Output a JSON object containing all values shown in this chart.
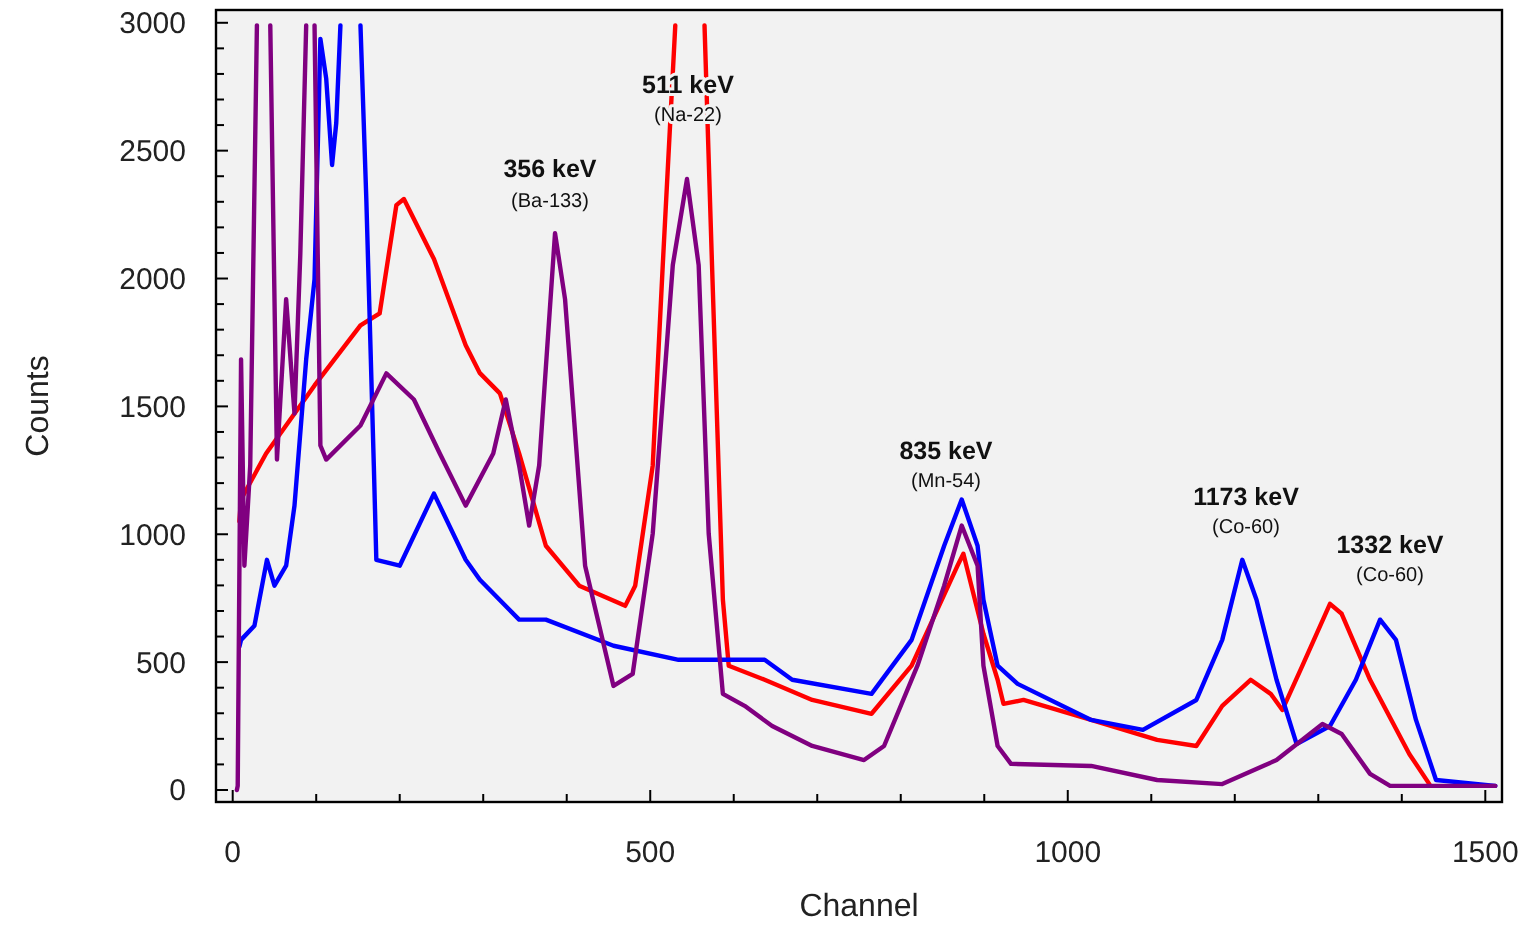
{
  "chart_data": {
    "type": "line",
    "xlabel": "Channel",
    "ylabel": "Counts",
    "xlim": [
      -20,
      1520
    ],
    "ylim": [
      -47,
      3050
    ],
    "xticks": [
      0,
      {
        "value": 100,
        "label": null
      },
      {
        "value": 200,
        "label": null
      },
      {
        "value": 300,
        "label": null
      },
      {
        "value": 400,
        "label": null
      },
      500,
      {
        "value": 600,
        "label": null
      },
      {
        "value": 700,
        "label": null
      },
      {
        "value": 800,
        "label": null
      },
      {
        "value": 900,
        "label": null
      },
      1000,
      {
        "value": 1100,
        "label": null
      },
      {
        "value": 1200,
        "label": null
      },
      {
        "value": 1300,
        "label": null
      },
      {
        "value": 1400,
        "label": null
      },
      1500
    ],
    "yticks": [
      0,
      {
        "value": 100,
        "label": null
      },
      {
        "value": 200,
        "label": null
      },
      {
        "value": 300,
        "label": null
      },
      {
        "value": 400,
        "label": null
      },
      500,
      {
        "value": 600,
        "label": null
      },
      {
        "value": 700,
        "label": null
      },
      {
        "value": 800,
        "label": null
      },
      {
        "value": 900,
        "label": null
      },
      1000,
      {
        "value": 1100,
        "label": null
      },
      {
        "value": 1200,
        "label": null
      },
      {
        "value": 1300,
        "label": null
      },
      {
        "value": 1400,
        "label": null
      },
      1500,
      {
        "value": 1600,
        "label": null
      },
      {
        "value": 1700,
        "label": null
      },
      {
        "value": 1800,
        "label": null
      },
      {
        "value": 1900,
        "label": null
      },
      2000,
      {
        "value": 2100,
        "label": null
      },
      {
        "value": 2200,
        "label": null
      },
      {
        "value": 2300,
        "label": null
      },
      {
        "value": 2400,
        "label": null
      },
      2500,
      {
        "value": 2600,
        "label": null
      },
      {
        "value": 2700,
        "label": null
      },
      {
        "value": 2800,
        "label": null
      },
      {
        "value": 2900,
        "label": null
      },
      3000
    ],
    "grid": false,
    "marker": "none",
    "line_style": "solid",
    "series": [
      {
        "color": "#ff0000",
        "x": [
          8,
          10,
          40,
          98,
          153,
          176,
          196,
          205,
          241,
          279,
          296,
          320,
          343,
          375,
          415,
          470,
          482,
          503,
          515,
          530,
          548,
          565,
          574,
          587,
          594,
          637,
          694,
          765,
          813,
          868,
          875,
          899,
          916,
          923,
          947,
          1028,
          1107,
          1154,
          1185,
          1219,
          1243,
          1257,
          1281,
          1314,
          1328,
          1362,
          1409,
          1433
        ],
        "values": [
          1050,
          1136,
          1316,
          1582,
          1817,
          1864,
          2287,
          2311,
          2076,
          1739,
          1630,
          1551,
          1316,
          955,
          799,
          720,
          799,
          1269,
          2052,
          2990,
          null,
          2990,
          2052,
          744,
          486,
          431,
          352,
          298,
          486,
          877,
          924,
          611,
          431,
          337,
          352,
          274,
          196,
          172,
          329,
          431,
          376,
          313,
          486,
          728,
          689,
          431,
          141,
          23
        ]
      },
      {
        "color": "#0000ff",
        "x": [
          8,
          10,
          26,
          41,
          50,
          64,
          74,
          88,
          98,
          105,
          112,
          119,
          124,
          129,
          141,
          153,
          160,
          169,
          172,
          200,
          241,
          279,
          296,
          343,
          375,
          456,
          534,
          637,
          670,
          765,
          813,
          852,
          873,
          892,
          899,
          916,
          940,
          1028,
          1090,
          1154,
          1185,
          1209,
          1226,
          1250,
          1274,
          1314,
          1345,
          1374,
          1393,
          1417,
          1441,
          1512
        ],
        "values": [
          560,
          587,
          642,
          900,
          799,
          877,
          1112,
          1684,
          1997,
          2937,
          2781,
          2444,
          2608,
          2990,
          null,
          2990,
          2311,
          1269,
          900,
          877,
          1159,
          900,
          822,
          666,
          666,
          564,
          509,
          509,
          431,
          376,
          587,
          955,
          1136,
          955,
          744,
          486,
          415,
          274,
          235,
          352,
          587,
          900,
          744,
          431,
          180,
          250,
          431,
          666,
          587,
          274,
          39,
          16
        ]
      },
      {
        "color": "#800080",
        "x": [
          5,
          6,
          10,
          14,
          21,
          29,
          37,
          45,
          53,
          64,
          74,
          81,
          88,
          93,
          98,
          105,
          112,
          153,
          184,
          217,
          248,
          279,
          312,
          327,
          343,
          355,
          367,
          386,
          398,
          422,
          456,
          479,
          503,
          527,
          544,
          558,
          570,
          587,
          613,
          646,
          694,
          756,
          780,
          820,
          852,
          873,
          892,
          899,
          916,
          932,
          1028,
          1107,
          1185,
          1250,
          1305,
          1328,
          1362,
          1386,
          1512
        ],
        "values": [
          0,
          16,
          1684,
          877,
          1269,
          2990,
          null,
          2990,
          1292,
          1919,
          1472,
          2099,
          2990,
          null,
          2990,
          1347,
          1292,
          1425,
          1629,
          1527,
          1316,
          1112,
          1316,
          1527,
          1269,
          1034,
          1269,
          2177,
          1919,
          877,
          407,
          454,
          1003,
          2052,
          2389,
          2052,
          1003,
          376,
          329,
          250,
          172,
          117,
          172,
          486,
          799,
          1034,
          877,
          486,
          172,
          102,
          94,
          39,
          23,
          117,
          258,
          219,
          63,
          16,
          16
        ]
      }
    ],
    "annotations": [
      "356 keV",
      "(Ba-133)",
      "511 keV",
      "(Na-22)",
      "835 keV",
      "(Mn-54)",
      "1173 keV",
      "(Co-60)",
      "1332 keV",
      "(Co-60)"
    ]
  }
}
